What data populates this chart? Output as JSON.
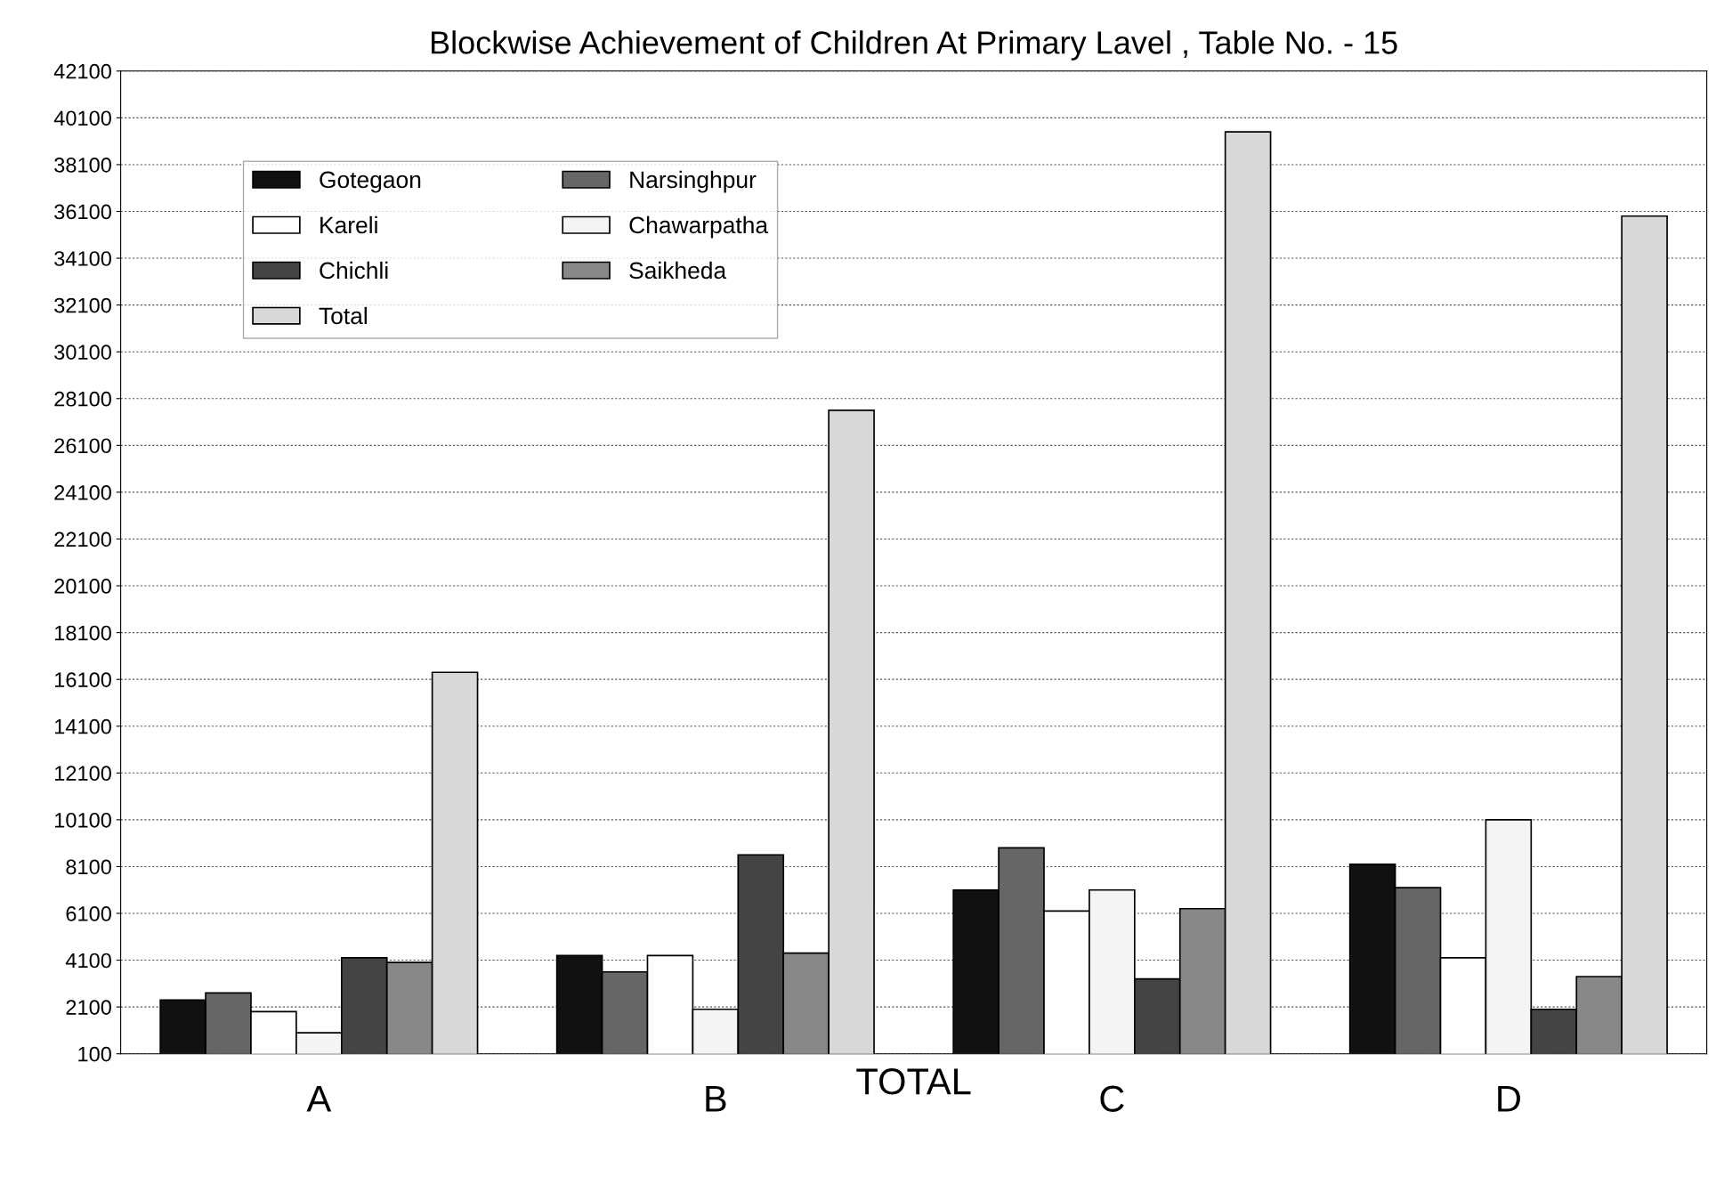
{
  "chart_data": {
    "type": "bar",
    "title": "Blockwise Achievement of Children At Primary Lavel , Table No. - 15",
    "xlabel": "TOTAL",
    "categories": [
      "A",
      "B",
      "C",
      "D"
    ],
    "series": [
      {
        "name": "Gotegaon",
        "color": "#111111",
        "values": [
          2400,
          4300,
          7100,
          8200
        ]
      },
      {
        "name": "Narsinghpur",
        "color": "#666666",
        "values": [
          2700,
          3600,
          8900,
          7200
        ]
      },
      {
        "name": "Kareli",
        "color": "#ffffff",
        "values": [
          1900,
          4300,
          6200,
          4200
        ]
      },
      {
        "name": "Chawarpatha",
        "color": "#f4f4f4",
        "values": [
          1000,
          2000,
          7100,
          10100
        ]
      },
      {
        "name": "Chichli",
        "color": "#444444",
        "values": [
          4200,
          8600,
          3300,
          2000
        ]
      },
      {
        "name": "Saikheda",
        "color": "#888888",
        "values": [
          4000,
          4400,
          6300,
          3400
        ]
      },
      {
        "name": "Total",
        "color": "#d8d8d8",
        "values": [
          16400,
          27600,
          39500,
          35900
        ]
      }
    ],
    "ylim": [
      100,
      42100
    ],
    "yticks": [
      100,
      2100,
      4100,
      6100,
      8100,
      10100,
      12100,
      14100,
      16100,
      18100,
      20100,
      22100,
      24100,
      26100,
      28100,
      30100,
      32100,
      34100,
      36100,
      38100,
      40100,
      42100
    ],
    "grid": "y",
    "legend": "top left"
  }
}
